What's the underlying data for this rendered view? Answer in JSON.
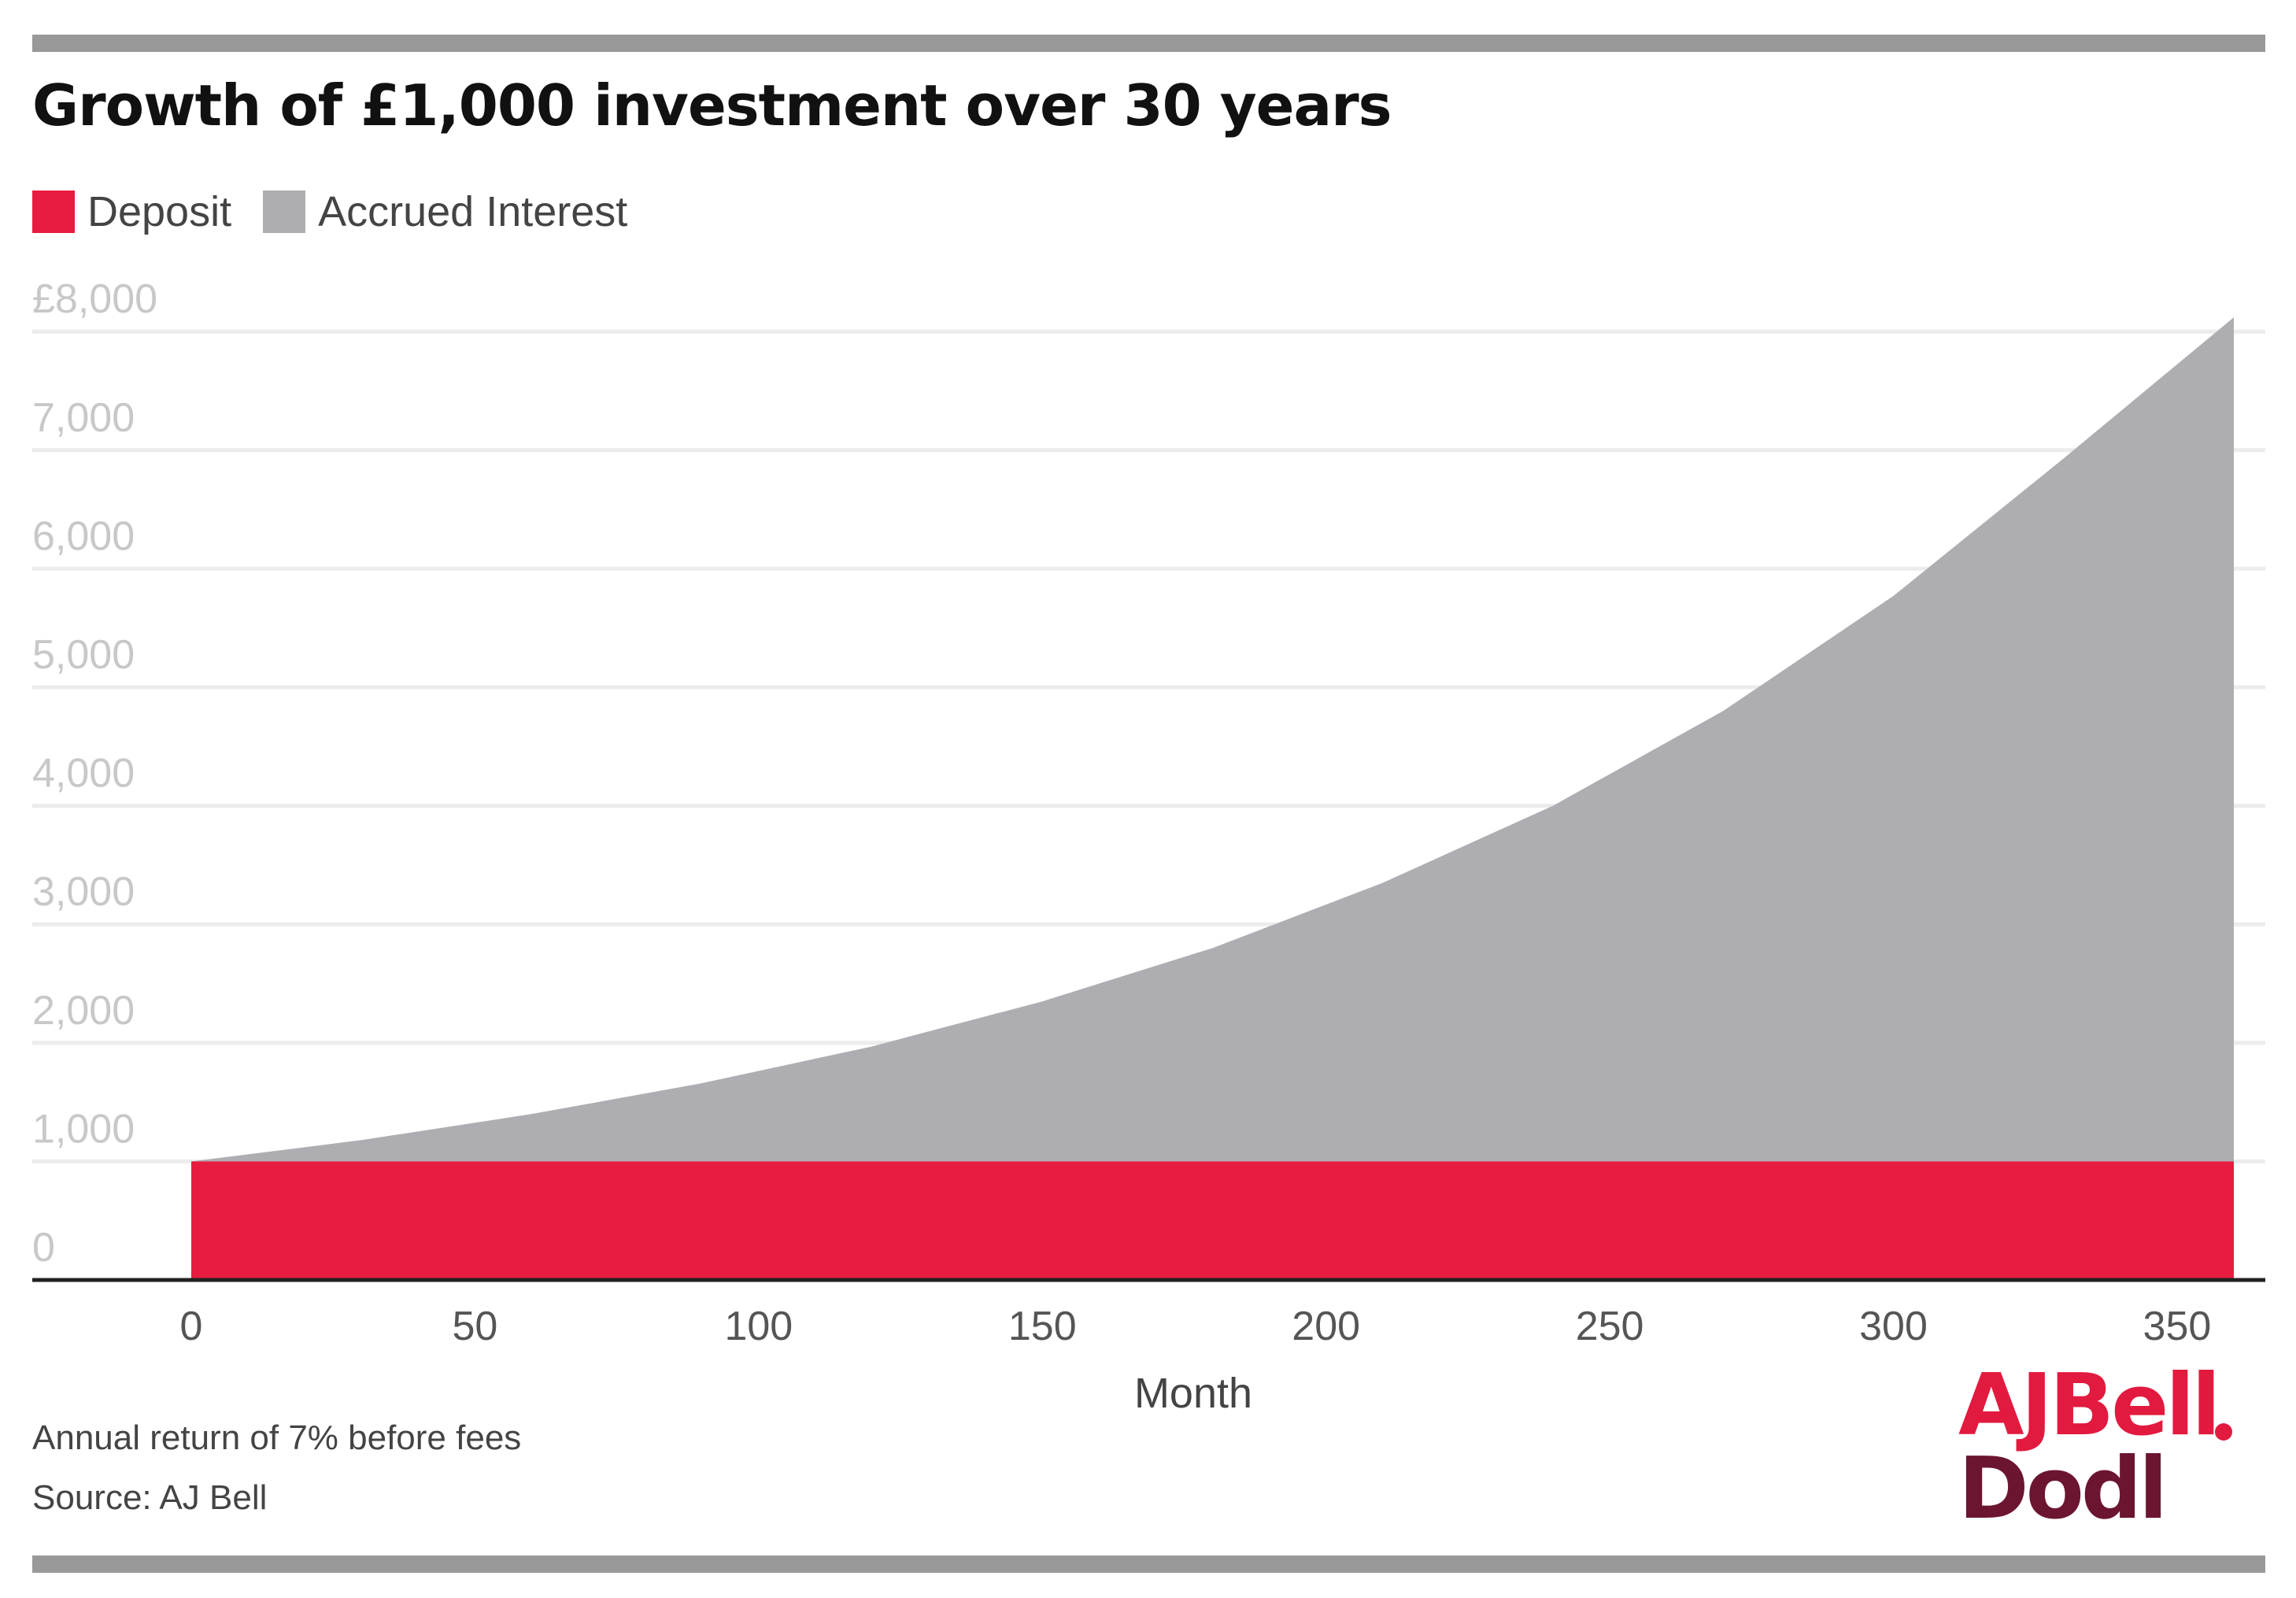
{
  "chart_data": {
    "type": "area",
    "title": "Growth of £1,000 investment over 30 years",
    "xlabel": "Month",
    "ylabel": "",
    "xlim": [
      0,
      360
    ],
    "ylim": [
      0,
      8000
    ],
    "x_ticks": [
      "0",
      "50",
      "100",
      "150",
      "200",
      "250",
      "300",
      "350"
    ],
    "y_ticks": [
      "0",
      "1,000",
      "2,000",
      "3,000",
      "4,000",
      "5,000",
      "6,000",
      "7,000",
      "£8,000"
    ],
    "grid": true,
    "legend_position": "top-left",
    "stacked": true,
    "x": [
      0,
      30,
      60,
      90,
      120,
      150,
      180,
      210,
      240,
      270,
      300,
      330,
      360
    ],
    "series": [
      {
        "name": "Deposit",
        "color": "#e81c40",
        "values": [
          1000,
          1000,
          1000,
          1000,
          1000,
          1000,
          1000,
          1000,
          1000,
          1000,
          1000,
          1000,
          1000
        ]
      },
      {
        "name": "Accrued Interest",
        "color": "#aeaeb2",
        "values": [
          0,
          180,
          400,
          660,
          970,
          1350,
          1800,
          2350,
          3000,
          3800,
          4770,
          5930,
          7120
        ]
      }
    ]
  },
  "notes": {
    "return": "Annual return of 7% before fees",
    "source": "Source: AJ Bell"
  },
  "logo": {
    "line1": "AJBell",
    "line2": "Dodl"
  }
}
